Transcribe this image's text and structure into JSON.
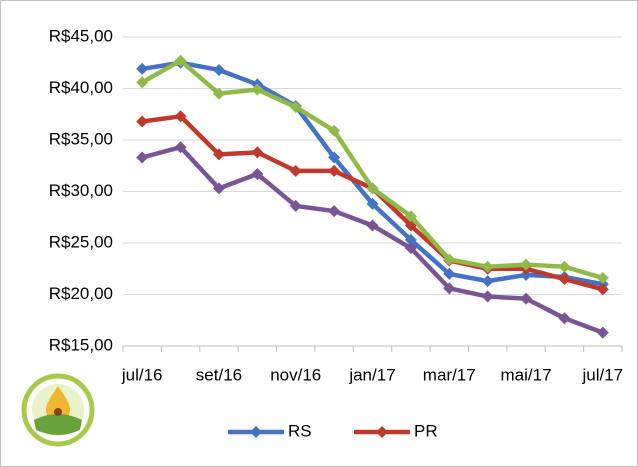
{
  "chart_data": {
    "type": "line",
    "categories": [
      "jul/16",
      null,
      "set/16",
      null,
      "nov/16",
      null,
      "jan/17",
      null,
      "mar/17",
      null,
      "mai/17",
      null,
      "jul/17"
    ],
    "series": [
      {
        "name": "RS",
        "color": "#4472c4",
        "values": [
          41.9,
          42.5,
          41.8,
          40.4,
          38.3,
          33.3,
          28.8,
          25.3,
          22.0,
          21.3,
          21.9,
          21.7,
          21.0
        ]
      },
      {
        "name": "PR",
        "color": "#c0392b",
        "values": [
          36.8,
          37.3,
          33.6,
          33.8,
          32.0,
          32.0,
          30.3,
          26.7,
          23.3,
          22.5,
          22.5,
          21.5,
          20.5
        ]
      },
      {
        "color": "#8fba4a",
        "values": [
          40.6,
          42.7,
          39.5,
          39.9,
          38.2,
          35.9,
          30.3,
          27.6,
          23.4,
          22.7,
          22.9,
          22.7,
          21.6
        ]
      },
      {
        "color": "#7a5596",
        "values": [
          33.3,
          34.3,
          30.3,
          31.7,
          28.6,
          28.1,
          26.7,
          24.5,
          20.6,
          19.8,
          19.6,
          17.7,
          16.3
        ]
      }
    ],
    "ylim": [
      15,
      45
    ],
    "yticks": [
      {
        "value": 15,
        "label": "R$15,00"
      },
      {
        "value": 20,
        "label": "R$20,00"
      },
      {
        "value": 25,
        "label": "R$25,00"
      },
      {
        "value": 30,
        "label": "R$30,00"
      },
      {
        "value": 35,
        "label": "R$35,00"
      },
      {
        "value": 40,
        "label": "R$40,00"
      },
      {
        "value": 45,
        "label": "R$45,00"
      }
    ],
    "grid": true,
    "legend": "bottom"
  }
}
